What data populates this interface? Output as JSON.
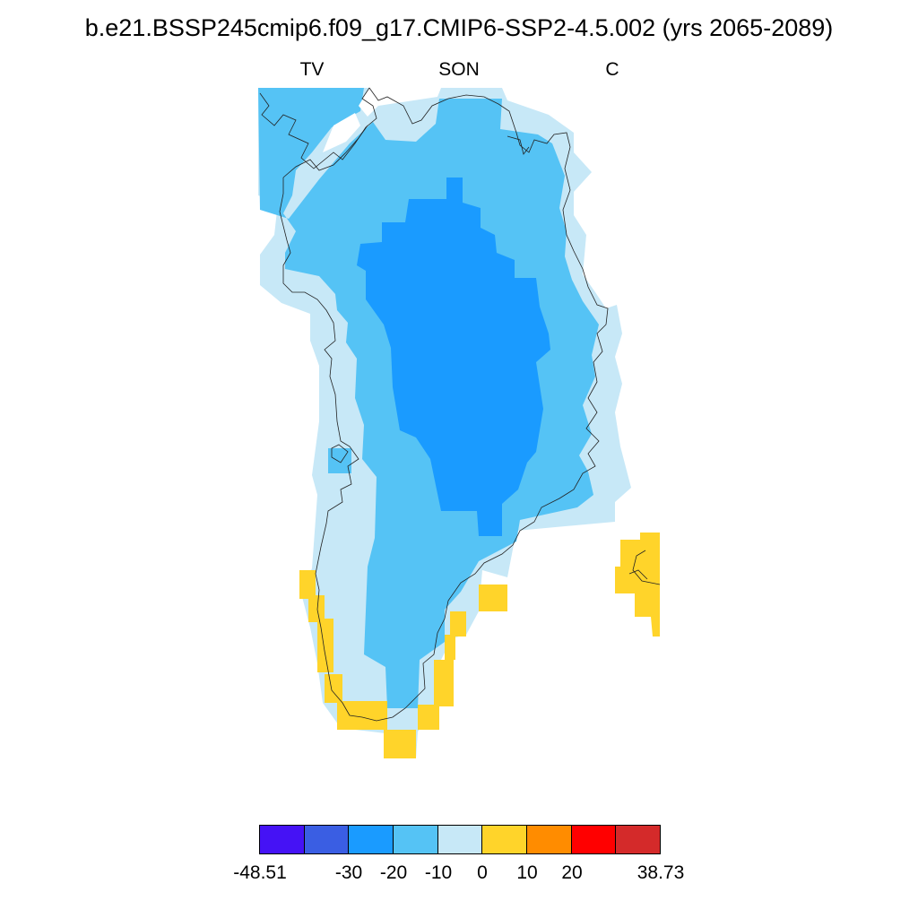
{
  "title": "b.e21.BSSP245cmip6.f09_g17.CMIP6-SSP2-4.5.002 (yrs 2065-2089)",
  "subtitles": {
    "left": "TV",
    "center": "SON",
    "right": "C"
  },
  "colorbar": {
    "colors": [
      "#4512f5",
      "#3a5ee3",
      "#1a9bff",
      "#55c3f5",
      "#c7e8f7",
      "#ffd42a",
      "#ff8c00",
      "#ff0000",
      "#d42a2a"
    ],
    "labels": [
      "-48.51",
      "-30",
      "-20",
      "-10",
      "0",
      "10",
      "20",
      "38.73"
    ]
  },
  "map_colors": {
    "light": "#c7e8f7",
    "mid": "#55c3f5",
    "deep": "#1a9bff",
    "warm": "#ffd42a",
    "coast": "#222222"
  }
}
